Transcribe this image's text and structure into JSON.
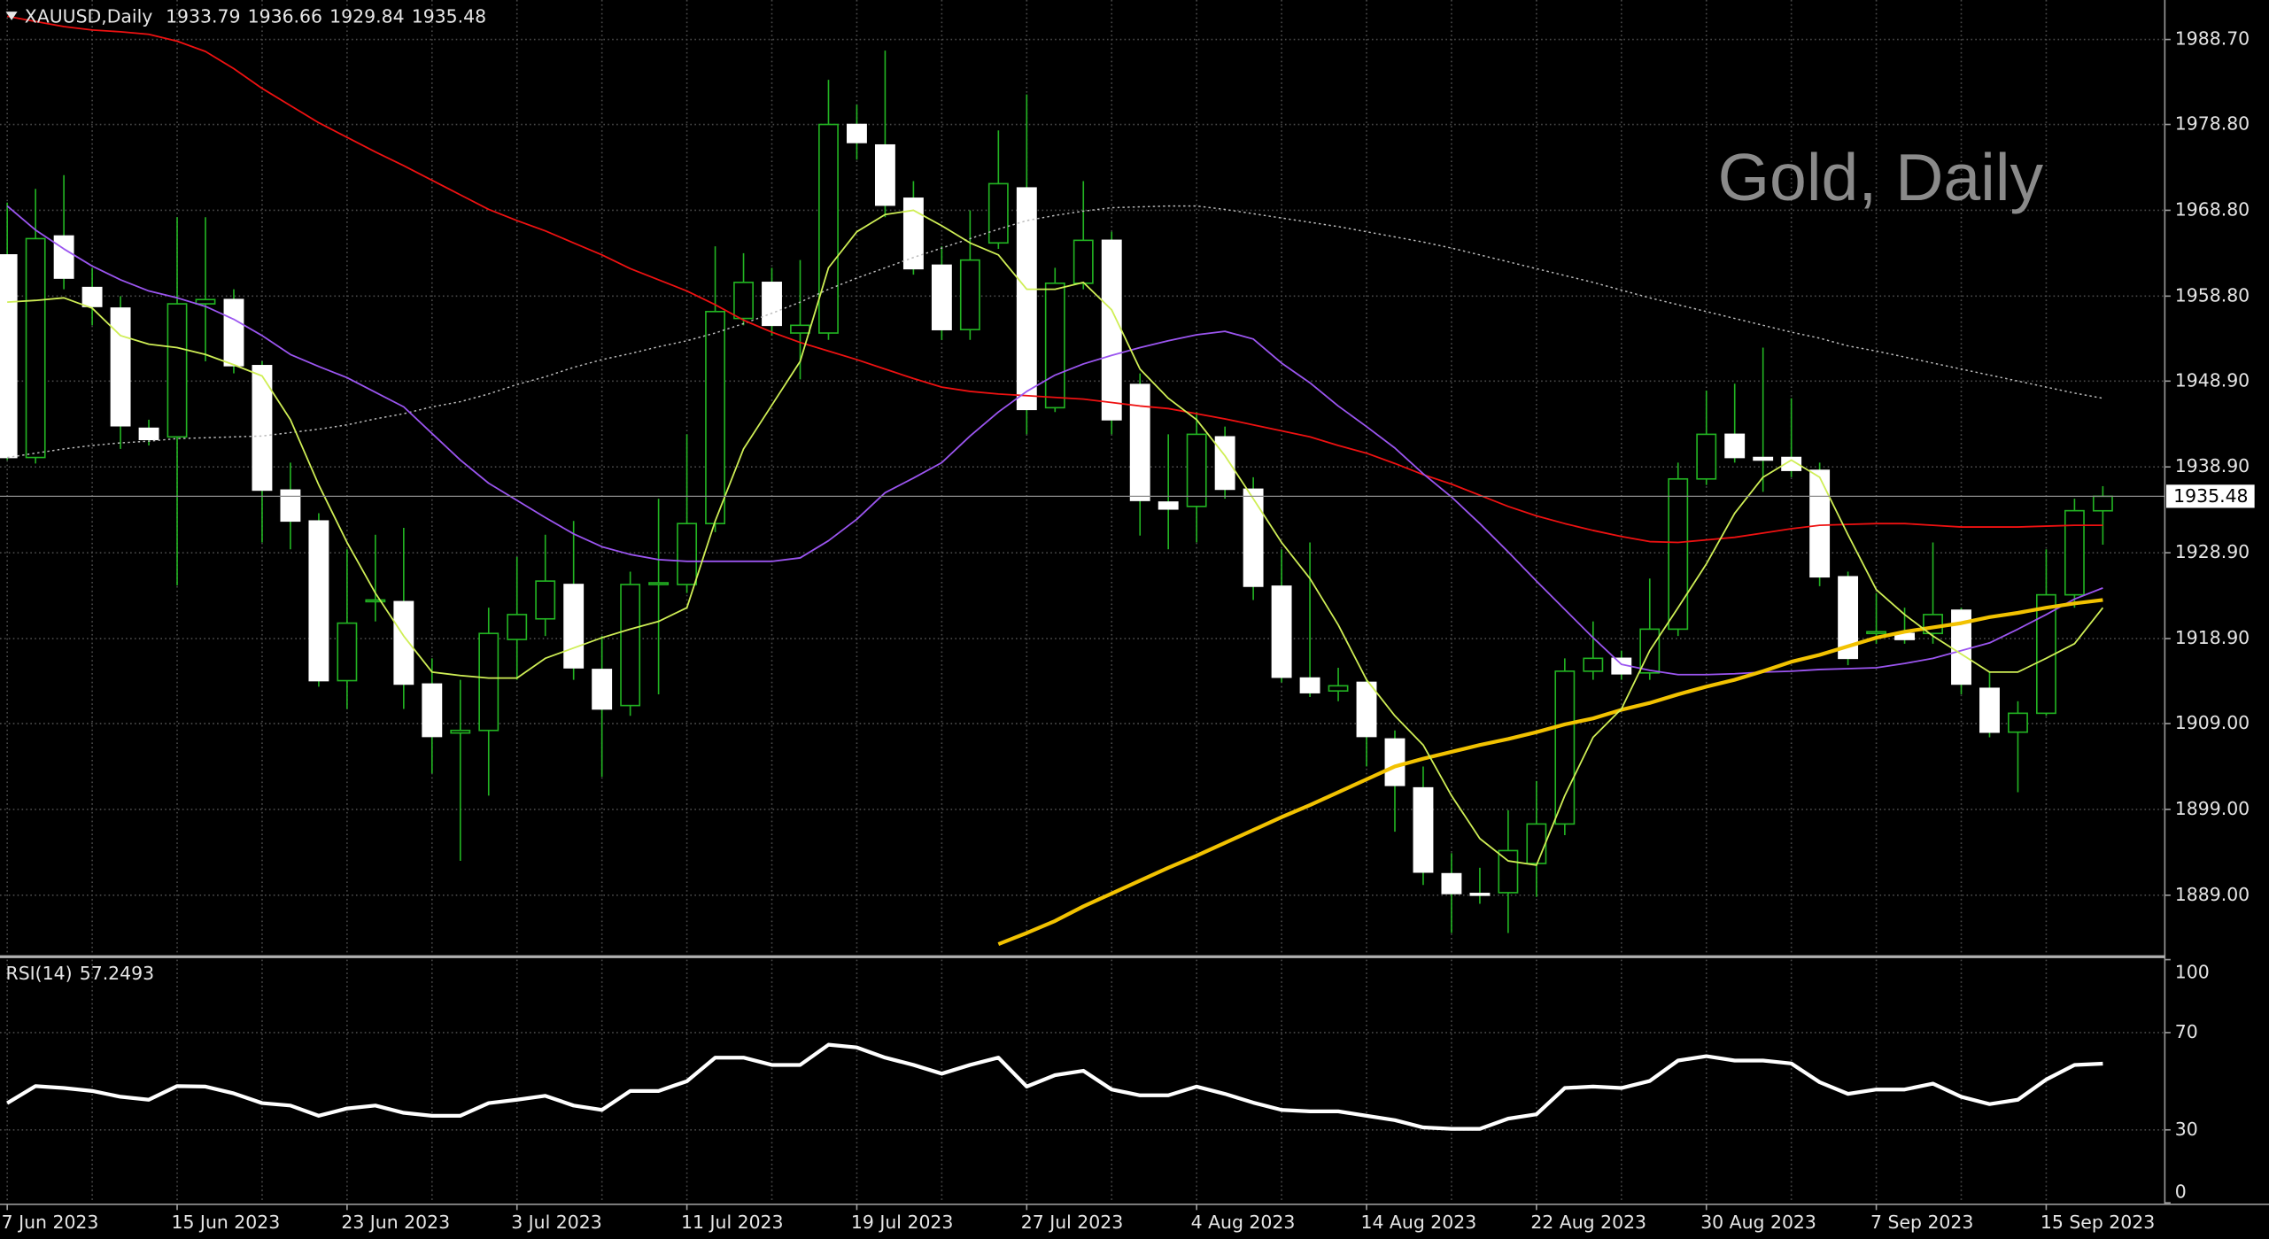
{
  "chart_data": [
    {
      "type": "candlestick",
      "title": "XAUUSD,Daily",
      "annotation": "Gold, Daily",
      "categories": [
        "7 Jun 2023",
        null,
        null,
        null,
        null,
        null,
        "15 Jun 2023",
        null,
        null,
        null,
        null,
        null,
        "23 Jun 2023",
        null,
        null,
        null,
        null,
        null,
        "3 Jul 2023",
        null,
        null,
        null,
        null,
        null,
        "11 Jul 2023",
        null,
        null,
        null,
        null,
        null,
        "19 Jul 2023",
        null,
        null,
        null,
        null,
        null,
        "27 Jul 2023",
        null,
        null,
        null,
        null,
        null,
        "4 Aug 2023",
        null,
        null,
        null,
        null,
        null,
        "14 Aug 2023",
        null,
        null,
        null,
        null,
        null,
        "22 Aug 2023",
        null,
        null,
        null,
        null,
        null,
        "30 Aug 2023",
        null,
        null,
        null,
        null,
        null,
        "7 Sep 2023",
        null,
        null,
        null,
        null,
        null,
        "15 Sep 2023",
        null,
        null
      ],
      "open": [
        1963.6,
        1940.0,
        1965.8,
        1959.8,
        1957.4,
        1943.4,
        1942.4,
        1957.9,
        1958.4,
        1950.7,
        1936.2,
        1932.6,
        1914.0,
        1923.2,
        1923.2,
        1913.6,
        1907.9,
        1908.2,
        1918.8,
        1921.2,
        1925.2,
        1915.3,
        1911.1,
        1925.2,
        1925.2,
        1932.3,
        1956.2,
        1960.4,
        1954.5,
        1954.5,
        1978.8,
        1976.4,
        1970.2,
        1962.4,
        1954.9,
        1965.0,
        1971.4,
        1945.8,
        1960.3,
        1965.3,
        1948.5,
        1934.8,
        1934.3,
        1942.4,
        1936.3,
        1925.0,
        1914.3,
        1912.8,
        1913.8,
        1907.2,
        1901.5,
        1891.5,
        1889.2,
        1889.3,
        1892.7,
        1897.3,
        1915.1,
        1916.6,
        1914.9,
        1920.0,
        1937.5,
        1942.7,
        1940.0,
        1940.0,
        1938.5,
        1926.1,
        1919.5,
        1919.5,
        1919.5,
        1922.2,
        1913.1,
        1908.0,
        1910.2,
        1924.0,
        1933.79
      ],
      "high": [
        1969.7,
        1971.3,
        1972.9,
        1962.1,
        1958.8,
        1944.4,
        1968.0,
        1968.0,
        1959.6,
        1951.2,
        1939.4,
        1933.5,
        1929.3,
        1931.0,
        1931.8,
        1916.6,
        1914.1,
        1922.5,
        1928.4,
        1931.0,
        1932.6,
        1919.2,
        1926.7,
        1935.2,
        1942.7,
        1964.6,
        1963.8,
        1962.1,
        1963.0,
        1984.0,
        1981.1,
        1987.4,
        1972.2,
        1964.6,
        1968.8,
        1978.1,
        1982.3,
        1962.1,
        1972.2,
        1966.3,
        1949.8,
        1942.7,
        1945.3,
        1943.6,
        1937.7,
        1929.3,
        1930.1,
        1915.5,
        1914.1,
        1908.2,
        1904.0,
        1893.9,
        1892.2,
        1898.9,
        1902.3,
        1916.6,
        1920.9,
        1917.5,
        1925.9,
        1939.4,
        1947.8,
        1948.6,
        1952.8,
        1946.9,
        1939.4,
        1926.7,
        1924.2,
        1922.5,
        1930.1,
        1922.5,
        1915.1,
        1911.6,
        1929.3,
        1935.2,
        1936.66
      ],
      "low": [
        1939.7,
        1939.3,
        1959.6,
        1955.4,
        1941.0,
        1941.4,
        1925.1,
        1951.2,
        1949.8,
        1930.1,
        1929.3,
        1913.3,
        1910.7,
        1920.9,
        1910.7,
        1903.2,
        1893.0,
        1900.6,
        1914.1,
        1919.2,
        1914.1,
        1902.8,
        1909.9,
        1912.4,
        1924.2,
        1931.3,
        1955.4,
        1954.2,
        1949.1,
        1953.7,
        1974.7,
        1968.0,
        1961.3,
        1953.7,
        1953.7,
        1964.3,
        1942.7,
        1945.3,
        1959.6,
        1942.7,
        1930.9,
        1929.3,
        1930.1,
        1935.2,
        1923.4,
        1913.8,
        1912.1,
        1911.6,
        1904.0,
        1896.4,
        1890.2,
        1884.6,
        1888.0,
        1884.6,
        1888.8,
        1896.0,
        1914.1,
        1914.1,
        1914.1,
        1919.2,
        1936.8,
        1939.4,
        1936.0,
        1937.7,
        1925.0,
        1915.8,
        1918.3,
        1918.3,
        1918.3,
        1912.4,
        1907.4,
        1901.0,
        1909.9,
        1922.5,
        1929.84
      ],
      "close": [
        1940.0,
        1965.5,
        1960.9,
        1957.6,
        1943.7,
        1942.1,
        1957.9,
        1958.4,
        1950.7,
        1936.2,
        1932.6,
        1914.0,
        1920.7,
        1923.4,
        1913.6,
        1907.5,
        1908.2,
        1919.5,
        1921.7,
        1925.6,
        1915.5,
        1910.7,
        1925.2,
        1925.4,
        1932.3,
        1957.0,
        1960.4,
        1955.4,
        1955.4,
        1978.8,
        1976.7,
        1969.4,
        1962.0,
        1954.9,
        1963.0,
        1971.9,
        1945.6,
        1960.3,
        1965.3,
        1944.4,
        1935.0,
        1934.0,
        1942.7,
        1936.3,
        1925.0,
        1914.4,
        1912.6,
        1913.4,
        1907.5,
        1901.8,
        1891.7,
        1889.2,
        1889.0,
        1894.2,
        1897.3,
        1915.1,
        1916.6,
        1914.8,
        1920.0,
        1937.5,
        1942.7,
        1940.0,
        1939.7,
        1938.5,
        1926.1,
        1916.6,
        1919.7,
        1918.8,
        1921.7,
        1913.6,
        1908.0,
        1910.2,
        1924.0,
        1933.8,
        1935.48
      ],
      "up_color": "#000000",
      "down_color": "#ffffff",
      "wick_color": "#22b322",
      "series": [
        {
          "color": "#bbbbbb",
          "style": "dotted",
          "values": [
            1940.0,
            1940.5,
            1941.0,
            1941.4,
            1941.7,
            1941.9,
            1942.2,
            1942.3,
            1942.4,
            1942.5,
            1942.9,
            1943.3,
            1943.8,
            1944.5,
            1945.1,
            1945.9,
            1946.5,
            1947.4,
            1948.5,
            1949.4,
            1950.5,
            1951.4,
            1952.1,
            1952.9,
            1953.6,
            1954.5,
            1955.6,
            1956.8,
            1958.1,
            1959.6,
            1960.9,
            1962.1,
            1963.3,
            1964.4,
            1965.5,
            1966.6,
            1967.6,
            1968.2,
            1968.7,
            1969.1,
            1969.2,
            1969.3,
            1969.3,
            1968.9,
            1968.4,
            1967.9,
            1967.4,
            1966.9,
            1966.3,
            1965.7,
            1965.1,
            1964.4,
            1963.6,
            1962.8,
            1962.0,
            1961.2,
            1960.4,
            1959.5,
            1958.6,
            1957.8,
            1957.0,
            1956.2,
            1955.4,
            1954.6,
            1953.9,
            1953.0,
            1952.4,
            1951.7,
            1951.0,
            1950.3,
            1949.6,
            1948.9,
            1948.2,
            1947.5,
            1946.9
          ]
        },
        {
          "color": "#ee1111",
          "style": "solid",
          "values": [
            1991.4,
            1990.8,
            1990.2,
            1989.8,
            1989.6,
            1989.3,
            1988.5,
            1987.3,
            1985.3,
            1983.0,
            1981.0,
            1979.0,
            1977.3,
            1975.6,
            1974.0,
            1972.3,
            1970.6,
            1968.9,
            1967.6,
            1966.4,
            1965.0,
            1963.6,
            1962.0,
            1960.7,
            1959.4,
            1957.8,
            1956.0,
            1954.6,
            1953.4,
            1952.4,
            1951.4,
            1950.3,
            1949.2,
            1948.2,
            1947.7,
            1947.4,
            1947.2,
            1947.0,
            1946.8,
            1946.4,
            1946.0,
            1945.7,
            1945.1,
            1944.5,
            1943.8,
            1943.1,
            1942.4,
            1941.4,
            1940.5,
            1939.3,
            1938.0,
            1936.9,
            1935.6,
            1934.3,
            1933.2,
            1932.3,
            1931.5,
            1930.8,
            1930.2,
            1930.1,
            1930.4,
            1930.7,
            1931.2,
            1931.7,
            1932.1,
            1932.2,
            1932.3,
            1932.3,
            1932.1,
            1931.9,
            1931.9,
            1931.9,
            1932.0,
            1932.1,
            1932.1
          ]
        },
        {
          "color": "#9b55f0",
          "style": "solid",
          "values": [
            1969.3,
            1966.5,
            1964.3,
            1962.3,
            1960.7,
            1959.4,
            1958.6,
            1957.6,
            1956.1,
            1954.2,
            1952.0,
            1950.6,
            1949.3,
            1947.6,
            1945.9,
            1942.8,
            1939.7,
            1937.0,
            1935.0,
            1933.0,
            1931.1,
            1929.6,
            1928.7,
            1928.1,
            1927.9,
            1927.9,
            1927.9,
            1927.9,
            1928.3,
            1930.3,
            1932.8,
            1935.9,
            1937.6,
            1939.4,
            1942.5,
            1945.3,
            1947.7,
            1949.6,
            1950.9,
            1951.9,
            1952.8,
            1953.6,
            1954.3,
            1954.7,
            1953.8,
            1951.0,
            1948.7,
            1946.0,
            1943.6,
            1941.1,
            1938.1,
            1935.4,
            1932.3,
            1929.0,
            1925.6,
            1922.3,
            1919.0,
            1915.9,
            1915.2,
            1914.7,
            1914.7,
            1914.8,
            1915.0,
            1915.1,
            1915.3,
            1915.4,
            1915.5,
            1916.0,
            1916.6,
            1917.5,
            1918.4,
            1920.0,
            1921.7,
            1923.5,
            1924.8
          ]
        },
        {
          "color": "#f2c200",
          "style": "bold",
          "values": [
            null,
            null,
            null,
            null,
            null,
            null,
            null,
            null,
            null,
            null,
            null,
            null,
            null,
            null,
            null,
            null,
            null,
            null,
            null,
            null,
            null,
            null,
            null,
            null,
            null,
            null,
            null,
            null,
            null,
            null,
            null,
            null,
            null,
            null,
            null,
            1883.3,
            1884.6,
            1886.0,
            1887.7,
            1889.2,
            1890.7,
            1892.2,
            1893.6,
            1895.1,
            1896.6,
            1898.1,
            1899.5,
            1901.0,
            1902.5,
            1904.0,
            1904.9,
            1905.7,
            1906.5,
            1907.2,
            1908.0,
            1908.9,
            1909.6,
            1910.6,
            1911.4,
            1912.4,
            1913.3,
            1914.1,
            1915.1,
            1916.2,
            1917.0,
            1918.0,
            1919.0,
            1919.7,
            1920.2,
            1920.7,
            1921.4,
            1921.9,
            1922.5,
            1923.0,
            1923.4
          ]
        },
        {
          "color": "#cfee55",
          "style": "solid",
          "values": [
            1958.1,
            1958.3,
            1958.6,
            1957.4,
            1954.2,
            1953.2,
            1952.8,
            1952.0,
            1950.8,
            1949.5,
            1944.4,
            1936.8,
            1930.1,
            1924.2,
            1919.2,
            1915.0,
            1914.6,
            1914.3,
            1914.3,
            1916.6,
            1917.8,
            1919.0,
            1920.0,
            1920.9,
            1922.5,
            1932.6,
            1941.0,
            1946.1,
            1951.2,
            1962.1,
            1966.3,
            1968.3,
            1968.8,
            1967.0,
            1965.0,
            1963.6,
            1959.6,
            1959.6,
            1960.4,
            1957.2,
            1950.3,
            1946.9,
            1944.4,
            1940.2,
            1935.2,
            1930.1,
            1925.9,
            1920.5,
            1914.1,
            1909.9,
            1906.5,
            1900.6,
            1895.6,
            1893.0,
            1892.5,
            1900.6,
            1907.4,
            1910.7,
            1917.5,
            1922.5,
            1927.6,
            1933.5,
            1937.7,
            1939.7,
            1937.7,
            1931.0,
            1924.6,
            1921.7,
            1919.2,
            1917.1,
            1915.0,
            1915.0,
            1916.6,
            1918.3,
            1922.5
          ]
        }
      ],
      "ylim": [
        1882.0,
        1993.3
      ],
      "yticks": [
        {
          "value": 1988.7,
          "label": "1988.70"
        },
        {
          "value": 1978.8,
          "label": "1978.80"
        },
        {
          "value": 1968.8,
          "label": "1968.80"
        },
        {
          "value": 1958.8,
          "label": "1958.80"
        },
        {
          "value": 1948.9,
          "label": "1948.90"
        },
        {
          "value": 1938.9,
          "label": "1938.90"
        },
        {
          "value": 1928.9,
          "label": "1928.90"
        },
        {
          "value": 1918.9,
          "label": "1918.90"
        },
        {
          "value": 1909.0,
          "label": "1909.00"
        },
        {
          "value": 1899.0,
          "label": "1899.00"
        },
        {
          "value": 1889.0,
          "label": "1889.00"
        }
      ],
      "grid": true
    },
    {
      "type": "line",
      "title": "RSI(14)",
      "color": "#ffffff",
      "values": [
        41.0,
        48.0,
        47.2,
        46.0,
        43.6,
        42.4,
        48.0,
        47.8,
        45.0,
        41.0,
        40.0,
        35.8,
        38.8,
        40.0,
        37.0,
        35.8,
        35.8,
        41.0,
        42.4,
        44.0,
        40.0,
        38.2,
        46.0,
        46.0,
        50.0,
        59.7,
        59.7,
        56.7,
        56.7,
        65.0,
        63.9,
        59.7,
        56.7,
        53.1,
        56.7,
        59.7,
        47.8,
        52.5,
        54.3,
        46.6,
        44.2,
        44.2,
        47.8,
        44.8,
        41.2,
        38.2,
        37.6,
        37.6,
        35.8,
        34.0,
        31.0,
        30.4,
        30.4,
        34.6,
        36.4,
        47.2,
        47.8,
        47.2,
        50.1,
        58.5,
        60.3,
        58.5,
        58.5,
        57.3,
        49.6,
        44.8,
        46.6,
        46.6,
        49.0,
        43.6,
        40.6,
        42.4,
        50.7,
        56.7,
        57.2493
      ],
      "ylim": [
        0,
        100
      ],
      "yticks": [
        0,
        30,
        70,
        100
      ],
      "grid": true
    }
  ]
}
